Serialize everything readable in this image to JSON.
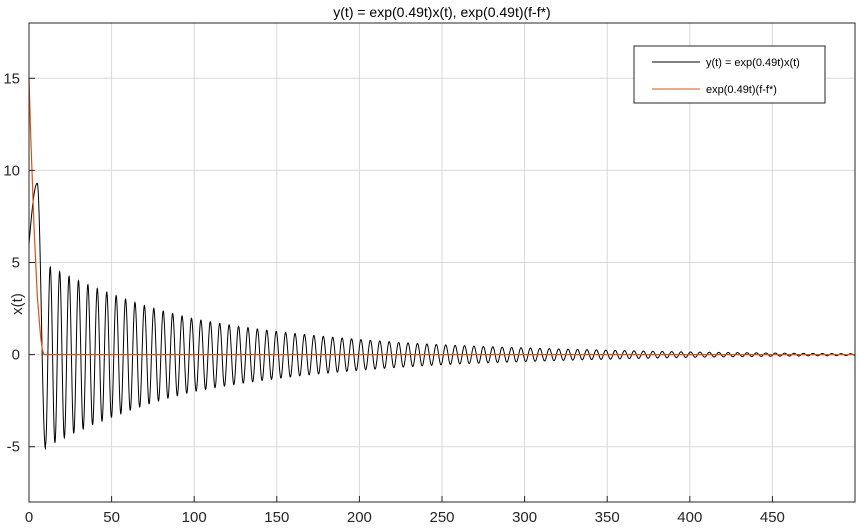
{
  "chart_data": {
    "type": "line",
    "title": "y(t) = exp(0.49t)x(t), exp(0.49t)(f-f*)",
    "xlabel": "",
    "ylabel": "x(t)",
    "xlim": [
      0,
      500
    ],
    "ylim": [
      -8,
      18
    ],
    "xticks": [
      0,
      50,
      100,
      150,
      200,
      250,
      300,
      350,
      400,
      450
    ],
    "yticks": [
      -5,
      0,
      5,
      10,
      15
    ],
    "grid": true,
    "legend_position": "top-right",
    "series": [
      {
        "name": "y(t) = exp(0.49t)x(t)",
        "color": "#000000",
        "model": {
          "form": "damped-oscillation",
          "start": [
            0,
            6
          ],
          "first_peak": [
            5,
            9.3
          ],
          "first_trough": [
            10,
            -5.1
          ],
          "envelope_peaks": [
            [
              13,
              4.9
            ],
            [
              50,
              3.4
            ],
            [
              100,
              2.0
            ],
            [
              150,
              1.3
            ],
            [
              200,
              0.85
            ],
            [
              250,
              0.55
            ],
            [
              300,
              0.38
            ],
            [
              350,
              0.25
            ],
            [
              400,
              0.15
            ],
            [
              450,
              0.09
            ],
            [
              500,
              0.05
            ]
          ],
          "trough_ratio": 0.97,
          "period": 5.7
        }
      },
      {
        "name": "exp(0.49t)(f-f*)",
        "color": "#D95319",
        "points": [
          [
            0,
            15
          ],
          [
            1,
            12
          ],
          [
            3,
            7
          ],
          [
            5,
            3.2
          ],
          [
            7,
            1
          ],
          [
            8,
            0.3
          ],
          [
            9,
            0
          ],
          [
            500,
            0
          ]
        ]
      }
    ]
  }
}
